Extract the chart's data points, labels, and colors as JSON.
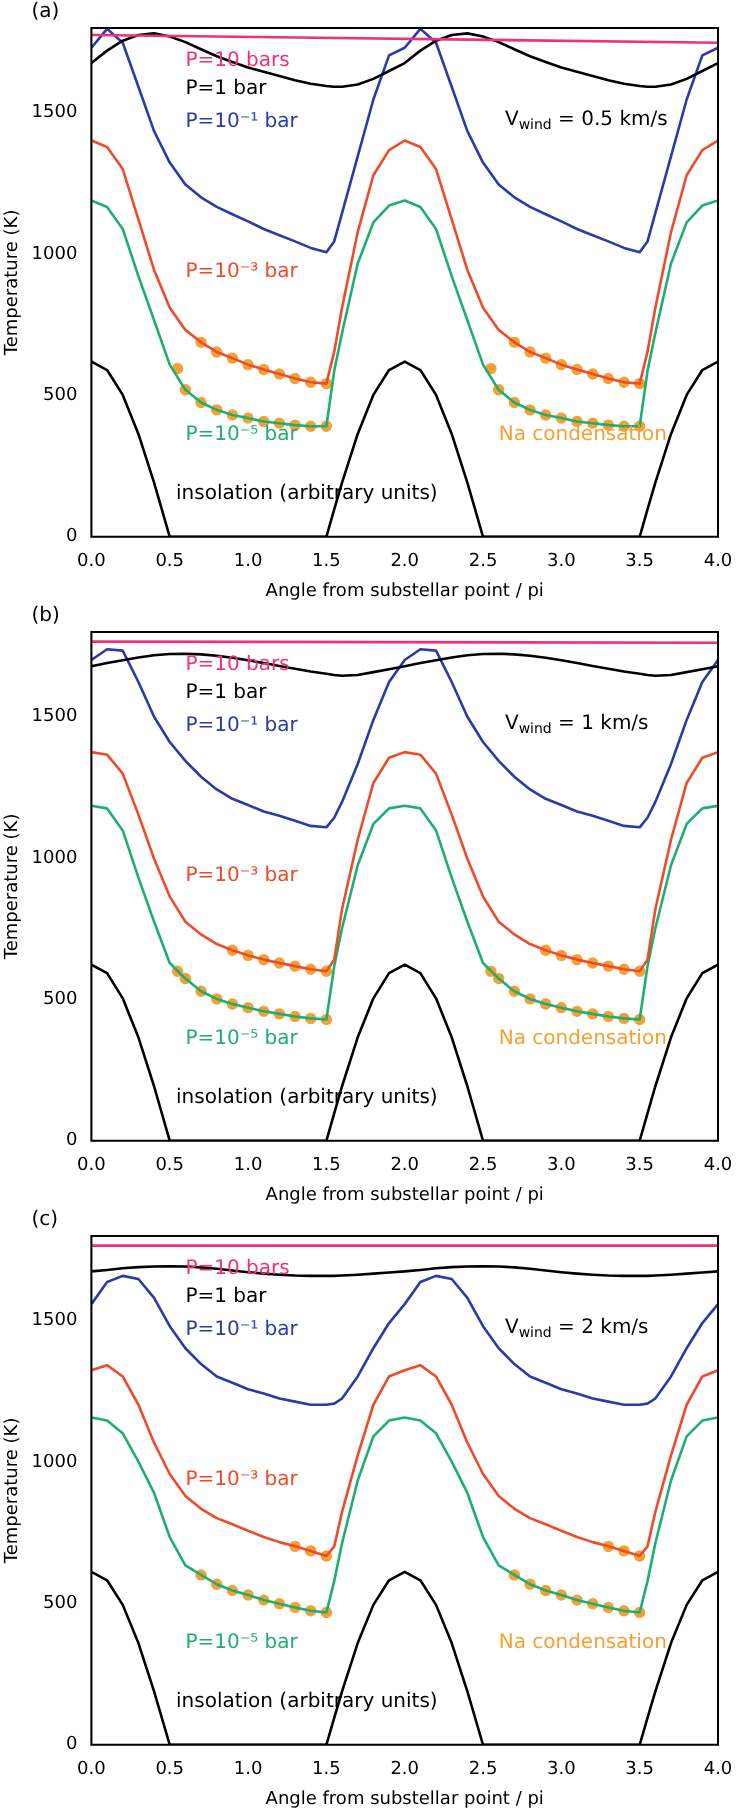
{
  "chart_data": [
    {
      "type": "line",
      "xlabel": "Angle from substellar point / pi",
      "ylabel": "Temperature (K)",
      "marker": "none",
      "annotations": [
        "(a)",
        "V$_{wind}$ = 0.5 km/s"
      ],
      "xlim": [
        0,
        4
      ],
      "xticks": [
        {
          "value": 0,
          "label": "0.0"
        },
        {
          "value": 0.5,
          "label": "0.5"
        },
        {
          "value": 1,
          "label": "1.0"
        },
        {
          "value": 1.5,
          "label": "1.5"
        },
        {
          "value": 2,
          "label": "2.0"
        },
        {
          "value": 2.5,
          "label": "2.5"
        },
        {
          "value": 3,
          "label": "3.0"
        },
        {
          "value": 3.5,
          "label": "3.5"
        },
        {
          "value": 4,
          "label": "4.0"
        }
      ],
      "ylim": [
        0,
        1800
      ],
      "yticks": [
        0,
        500,
        1000,
        1500
      ],
      "x": [
        0,
        0.1,
        0.2,
        0.3,
        0.4,
        0.5,
        0.6,
        0.7,
        0.8,
        0.9,
        1.0,
        1.1,
        1.2,
        1.3,
        1.4,
        1.5,
        1.55,
        1.6,
        1.7,
        1.8,
        1.9,
        2.0,
        2.1,
        2.2,
        2.3,
        2.4,
        2.5,
        2.6,
        2.7,
        2.8,
        2.9,
        3.0,
        3.1,
        3.2,
        3.3,
        3.4,
        3.5,
        3.55,
        3.6,
        3.7,
        3.8,
        3.9,
        4.0
      ],
      "series": [
        {
          "name": "P=10 bars",
          "color": "#f0307a",
          "x": [
            0,
            4
          ],
          "values": [
            1775,
            1748
          ]
        },
        {
          "name": "P=1 bar",
          "color": "#000000",
          "values": [
            1676,
            1720,
            1755,
            1775,
            1781,
            1770,
            1750,
            1725,
            1700,
            1680,
            1660,
            1645,
            1630,
            1615,
            1603,
            1595,
            1592,
            1592,
            1600,
            1620,
            1648,
            1676,
            1720,
            1755,
            1775,
            1781,
            1770,
            1750,
            1725,
            1700,
            1680,
            1660,
            1645,
            1630,
            1615,
            1603,
            1595,
            1592,
            1592,
            1600,
            1620,
            1648,
            1676
          ]
        },
        {
          "name": "P=10⁻¹ bar",
          "color": "#2c3aa6",
          "values": [
            1730,
            1797,
            1748,
            1592,
            1435,
            1324,
            1246,
            1201,
            1167,
            1141,
            1116,
            1089,
            1067,
            1045,
            1022,
            1007,
            1045,
            1145,
            1346,
            1547,
            1703,
            1730,
            1797,
            1748,
            1592,
            1435,
            1324,
            1246,
            1201,
            1167,
            1141,
            1116,
            1089,
            1067,
            1045,
            1022,
            1007,
            1045,
            1145,
            1346,
            1547,
            1703,
            1730
          ]
        },
        {
          "name": "P=10⁻³ bar",
          "color": "#ee4b2b",
          "values": [
            1402,
            1379,
            1301,
            1123,
            944,
            810,
            732,
            688,
            654,
            632,
            609,
            592,
            576,
            560,
            547,
            542,
            654,
            810,
            1078,
            1279,
            1368,
            1402,
            1379,
            1301,
            1123,
            944,
            810,
            732,
            688,
            654,
            632,
            609,
            592,
            576,
            560,
            547,
            542,
            654,
            810,
            1078,
            1279,
            1368,
            1402
          ]
        },
        {
          "name": "P=10⁻⁵ bar",
          "color": "#1fae72",
          "values": [
            1190,
            1167,
            1089,
            922,
            766,
            609,
            520,
            475,
            449,
            431,
            420,
            408,
            402,
            395,
            391,
            391,
            587,
            721,
            967,
            1112,
            1172,
            1190,
            1167,
            1089,
            922,
            766,
            609,
            520,
            475,
            449,
            431,
            420,
            408,
            402,
            395,
            391,
            391,
            587,
            721,
            967,
            1112,
            1172,
            1190
          ]
        },
        {
          "name": "insolation (arbitrary units)",
          "color": "#000000",
          "values": [
            620,
            590,
            502,
            364,
            192,
            0,
            0,
            0,
            0,
            0,
            0,
            0,
            0,
            0,
            0,
            0,
            97,
            192,
            364,
            502,
            590,
            620,
            590,
            502,
            364,
            192,
            0,
            0,
            0,
            0,
            0,
            0,
            0,
            0,
            0,
            0,
            0,
            97,
            192,
            364,
            502,
            590,
            620
          ]
        },
        {
          "name": "Na condensation",
          "type": "scatter",
          "marker": "circle",
          "color": "#f5a032",
          "x": [
            0.7,
            0.8,
            0.9,
            1.0,
            1.1,
            1.2,
            1.3,
            1.4,
            1.5,
            2.7,
            2.8,
            2.9,
            3.0,
            3.1,
            3.2,
            3.3,
            3.4,
            3.5,
            0.55,
            0.6,
            0.7,
            0.8,
            0.9,
            1.0,
            1.1,
            1.2,
            1.3,
            1.4,
            1.5,
            2.55,
            2.6,
            2.7,
            2.8,
            2.9,
            3.0,
            3.1,
            3.2,
            3.3,
            3.4,
            3.5
          ],
          "values": [
            688,
            654,
            632,
            609,
            592,
            576,
            560,
            547,
            542,
            688,
            654,
            632,
            609,
            592,
            576,
            560,
            547,
            542,
            595,
            520,
            475,
            449,
            431,
            420,
            408,
            402,
            395,
            391,
            391,
            595,
            520,
            475,
            449,
            431,
            420,
            408,
            402,
            395,
            391,
            391
          ]
        }
      ]
    },
    {
      "type": "line",
      "xlabel": "Angle from substellar point / pi",
      "ylabel": "Temperature (K)",
      "marker": "none",
      "annotations": [
        "(b)",
        "V$_{wind}$ = 1 km/s"
      ],
      "xlim": [
        0,
        4
      ],
      "xticks": [
        {
          "value": 0,
          "label": "0.0"
        },
        {
          "value": 0.5,
          "label": "0.5"
        },
        {
          "value": 1,
          "label": "1.0"
        },
        {
          "value": 1.5,
          "label": "1.5"
        },
        {
          "value": 2,
          "label": "2.0"
        },
        {
          "value": 2.5,
          "label": "2.5"
        },
        {
          "value": 3,
          "label": "3.0"
        },
        {
          "value": 3.5,
          "label": "3.5"
        },
        {
          "value": 4,
          "label": "4.0"
        }
      ],
      "ylim": [
        0,
        1800
      ],
      "yticks": [
        0,
        500,
        1000,
        1500
      ],
      "x": [
        0,
        0.1,
        0.2,
        0.3,
        0.4,
        0.5,
        0.6,
        0.7,
        0.8,
        0.9,
        1.0,
        1.1,
        1.2,
        1.3,
        1.4,
        1.5,
        1.55,
        1.6,
        1.7,
        1.8,
        1.9,
        2.0,
        2.1,
        2.2,
        2.3,
        2.4,
        2.5,
        2.6,
        2.7,
        2.8,
        2.9,
        3.0,
        3.1,
        3.2,
        3.3,
        3.4,
        3.5,
        3.55,
        3.6,
        3.7,
        3.8,
        3.9,
        4.0
      ],
      "series": [
        {
          "name": "P=10 bars",
          "color": "#f0307a",
          "x": [
            0,
            4
          ],
          "values": [
            1766,
            1762
          ]
        },
        {
          "name": "P=1 bar",
          "color": "#000000",
          "values": [
            1679,
            1690,
            1700,
            1710,
            1718,
            1722,
            1723,
            1721,
            1716,
            1709,
            1700,
            1690,
            1680,
            1670,
            1660,
            1652,
            1648,
            1645,
            1648,
            1658,
            1668,
            1679,
            1690,
            1700,
            1710,
            1718,
            1722,
            1723,
            1721,
            1716,
            1709,
            1700,
            1690,
            1680,
            1670,
            1660,
            1652,
            1648,
            1645,
            1648,
            1658,
            1668,
            1679
          ]
        },
        {
          "name": "P=10⁻¹ bar",
          "color": "#2c3aa6",
          "values": [
            1701,
            1739,
            1734,
            1623,
            1500,
            1411,
            1344,
            1288,
            1243,
            1210,
            1188,
            1165,
            1150,
            1132,
            1114,
            1109,
            1143,
            1199,
            1333,
            1489,
            1623,
            1701,
            1739,
            1734,
            1623,
            1500,
            1411,
            1344,
            1288,
            1243,
            1210,
            1188,
            1165,
            1150,
            1132,
            1114,
            1109,
            1143,
            1199,
            1333,
            1489,
            1623,
            1701
          ]
        },
        {
          "name": "P=10⁻³ bar",
          "color": "#ee4b2b",
          "values": [
            1375,
            1366,
            1299,
            1154,
            998,
            864,
            775,
            730,
            696,
            674,
            656,
            641,
            629,
            618,
            607,
            600,
            641,
            819,
            1065,
            1266,
            1355,
            1375,
            1366,
            1299,
            1154,
            998,
            864,
            775,
            730,
            696,
            674,
            656,
            641,
            629,
            618,
            607,
            600,
            641,
            819,
            1065,
            1266,
            1355,
            1375
          ]
        },
        {
          "name": "P=10⁻⁵ bar",
          "color": "#1fae72",
          "values": [
            1185,
            1176,
            1098,
            931,
            775,
            629,
            574,
            529,
            502,
            484,
            471,
            458,
            449,
            440,
            433,
            429,
            618,
            752,
            975,
            1121,
            1176,
            1185,
            1176,
            1098,
            931,
            775,
            629,
            574,
            529,
            502,
            484,
            471,
            458,
            449,
            440,
            433,
            429,
            618,
            752,
            975,
            1121,
            1176,
            1185
          ]
        },
        {
          "name": "insolation (arbitrary units)",
          "color": "#000000",
          "values": [
            623,
            593,
            504,
            366,
            193,
            0,
            0,
            0,
            0,
            0,
            0,
            0,
            0,
            0,
            0,
            0,
            97,
            193,
            366,
            504,
            593,
            623,
            593,
            504,
            366,
            193,
            0,
            0,
            0,
            0,
            0,
            0,
            0,
            0,
            0,
            0,
            0,
            97,
            193,
            366,
            504,
            593,
            623
          ]
        },
        {
          "name": "Na condensation",
          "type": "scatter",
          "marker": "circle",
          "color": "#f5a032",
          "x": [
            0.9,
            1.0,
            1.1,
            1.2,
            1.3,
            1.4,
            1.5,
            2.9,
            3.0,
            3.1,
            3.2,
            3.3,
            3.4,
            3.5,
            0.55,
            0.6,
            0.7,
            0.8,
            0.9,
            1.0,
            1.1,
            1.2,
            1.3,
            1.4,
            1.5,
            2.55,
            2.6,
            2.7,
            2.8,
            2.9,
            3.0,
            3.1,
            3.2,
            3.3,
            3.4,
            3.5
          ],
          "values": [
            674,
            656,
            641,
            629,
            618,
            607,
            600,
            674,
            656,
            641,
            629,
            618,
            607,
            600,
            600,
            574,
            529,
            502,
            484,
            471,
            458,
            449,
            440,
            433,
            429,
            600,
            574,
            529,
            502,
            484,
            471,
            458,
            449,
            440,
            433,
            429
          ]
        }
      ]
    },
    {
      "type": "line",
      "xlabel": "Angle from substellar point / pi",
      "ylabel": "Temperature (K)",
      "marker": "none",
      "annotations": [
        "(c)",
        "V$_{wind}$ = 2 km/s"
      ],
      "xlim": [
        0,
        4
      ],
      "xticks": [
        {
          "value": 0,
          "label": "0.0"
        },
        {
          "value": 0.5,
          "label": "0.5"
        },
        {
          "value": 1,
          "label": "1.0"
        },
        {
          "value": 1.5,
          "label": "1.5"
        },
        {
          "value": 2,
          "label": "2.0"
        },
        {
          "value": 2.5,
          "label": "2.5"
        },
        {
          "value": 3,
          "label": "3.0"
        },
        {
          "value": 3.5,
          "label": "3.5"
        },
        {
          "value": 4,
          "label": "4.0"
        }
      ],
      "ylim": [
        0,
        1800
      ],
      "yticks": [
        0,
        500,
        1000,
        1500
      ],
      "x": [
        0,
        0.1,
        0.2,
        0.3,
        0.4,
        0.5,
        0.6,
        0.7,
        0.8,
        0.9,
        1.0,
        1.1,
        1.2,
        1.3,
        1.4,
        1.5,
        1.55,
        1.6,
        1.7,
        1.8,
        1.9,
        2.0,
        2.1,
        2.2,
        2.3,
        2.4,
        2.5,
        2.6,
        2.7,
        2.8,
        2.9,
        3.0,
        3.1,
        3.2,
        3.3,
        3.4,
        3.5,
        3.55,
        3.6,
        3.7,
        3.8,
        3.9,
        4.0
      ],
      "series": [
        {
          "name": "P=10 bars",
          "color": "#f0307a",
          "x": [
            0,
            4
          ],
          "values": [
            1766,
            1766
          ]
        },
        {
          "name": "P=1 bar",
          "color": "#000000",
          "values": [
            1675,
            1680,
            1686,
            1690,
            1692,
            1693,
            1692,
            1689,
            1684,
            1678,
            1672,
            1667,
            1663,
            1660,
            1659,
            1659,
            1659,
            1660,
            1663,
            1667,
            1671,
            1675,
            1680,
            1686,
            1690,
            1692,
            1693,
            1692,
            1689,
            1684,
            1678,
            1672,
            1667,
            1663,
            1660,
            1659,
            1659,
            1659,
            1660,
            1663,
            1667,
            1671,
            1675
          ]
        },
        {
          "name": "P=10⁻¹ bar",
          "color": "#2c3aa6",
          "values": [
            1559,
            1637,
            1659,
            1648,
            1581,
            1481,
            1403,
            1347,
            1303,
            1281,
            1258,
            1243,
            1225,
            1214,
            1203,
            1203,
            1207,
            1225,
            1303,
            1403,
            1492,
            1559,
            1637,
            1659,
            1648,
            1581,
            1481,
            1403,
            1347,
            1303,
            1281,
            1258,
            1243,
            1225,
            1214,
            1203,
            1203,
            1207,
            1225,
            1303,
            1403,
            1492,
            1559
          ]
        },
        {
          "name": "P=10⁻³ bar",
          "color": "#ee4b2b",
          "values": [
            1325,
            1343,
            1303,
            1203,
            1069,
            958,
            880,
            835,
            802,
            780,
            757,
            735,
            717,
            702,
            686,
            668,
            702,
            824,
            1024,
            1203,
            1303,
            1325,
            1343,
            1303,
            1203,
            1069,
            958,
            880,
            835,
            802,
            780,
            757,
            735,
            717,
            702,
            686,
            668,
            702,
            824,
            1024,
            1203,
            1303,
            1325
          ]
        },
        {
          "name": "P=10⁻⁵ bar",
          "color": "#1fae72",
          "values": [
            1158,
            1147,
            1102,
            1002,
            891,
            735,
            635,
            601,
            568,
            546,
            530,
            512,
            499,
            486,
            474,
            468,
            579,
            713,
            935,
            1091,
            1147,
            1158,
            1147,
            1102,
            1002,
            891,
            735,
            635,
            601,
            568,
            546,
            530,
            512,
            499,
            486,
            474,
            468,
            579,
            713,
            935,
            1091,
            1147,
            1158
          ]
        },
        {
          "name": "insolation (arbitrary units)",
          "color": "#000000",
          "values": [
            612,
            582,
            495,
            360,
            189,
            0,
            0,
            0,
            0,
            0,
            0,
            0,
            0,
            0,
            0,
            0,
            95,
            189,
            360,
            495,
            582,
            612,
            582,
            495,
            360,
            189,
            0,
            0,
            0,
            0,
            0,
            0,
            0,
            0,
            0,
            0,
            0,
            95,
            189,
            360,
            495,
            582,
            612
          ]
        },
        {
          "name": "Na condensation",
          "type": "scatter",
          "marker": "circle",
          "color": "#f5a032",
          "x": [
            1.3,
            1.4,
            1.5,
            3.3,
            3.4,
            3.5,
            0.7,
            0.8,
            0.9,
            1.0,
            1.1,
            1.2,
            1.3,
            1.4,
            1.5,
            2.7,
            2.8,
            2.9,
            3.0,
            3.1,
            3.2,
            3.3,
            3.4,
            3.5
          ],
          "values": [
            702,
            686,
            668,
            702,
            686,
            668,
            601,
            568,
            546,
            530,
            512,
            499,
            486,
            474,
            468,
            601,
            568,
            546,
            530,
            512,
            499,
            486,
            474,
            468
          ]
        }
      ]
    }
  ]
}
